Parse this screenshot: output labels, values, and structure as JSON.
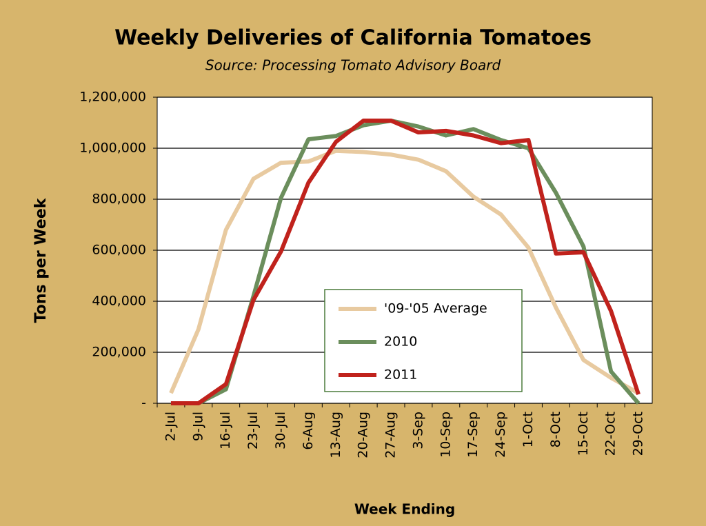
{
  "chart_data": {
    "type": "line",
    "title": "Weekly Deliveries of  California Tomatoes",
    "subtitle": "Source: Processing Tomato Advisory Board",
    "x_label": "Week Ending",
    "y_label": "Tons per Week",
    "categories": [
      "2-Jul",
      "9-Jul",
      "16-Jul",
      "23-Jul",
      "30-Jul",
      "6-Aug",
      "13-Aug",
      "20-Aug",
      "27-Aug",
      "3-Sep",
      "10-Sep",
      "17-Sep",
      "24-Sep",
      "1-Oct",
      "8-Oct",
      "15-Oct",
      "22-Oct",
      "29-Oct"
    ],
    "series": [
      {
        "name": "'09-'05 Average",
        "color": "#e8caa0",
        "values": [
          40000,
          290000,
          680000,
          880000,
          943000,
          948000,
          990000,
          985000,
          975000,
          955000,
          910000,
          810000,
          740000,
          610000,
          375000,
          170000,
          100000,
          40000
        ]
      },
      {
        "name": "2010",
        "color": "#6b8e5c",
        "values": [
          0,
          0,
          55000,
          420000,
          805000,
          1035000,
          1048000,
          1090000,
          1108000,
          1085000,
          1050000,
          1075000,
          1032000,
          1000000,
          825000,
          615000,
          125000,
          0
        ]
      },
      {
        "name": "2011",
        "color": "#c0221c",
        "values": [
          0,
          0,
          75000,
          405000,
          595000,
          865000,
          1025000,
          1108000,
          1108000,
          1062000,
          1068000,
          1050000,
          1020000,
          1032000,
          587000,
          592000,
          362000,
          35000
        ]
      }
    ],
    "ylim": [
      0,
      1200000
    ],
    "yticks": [
      {
        "value": 0,
        "label": "-"
      },
      {
        "value": 200000,
        "label": "200,000"
      },
      {
        "value": 400000,
        "label": "400,000"
      },
      {
        "value": 600000,
        "label": "600,000"
      },
      {
        "value": 800000,
        "label": "800,000"
      },
      {
        "value": 1000000,
        "label": "1,000,000"
      },
      {
        "value": 1200000,
        "label": "1,200,000"
      }
    ],
    "grid": true,
    "legend_position": "center"
  }
}
